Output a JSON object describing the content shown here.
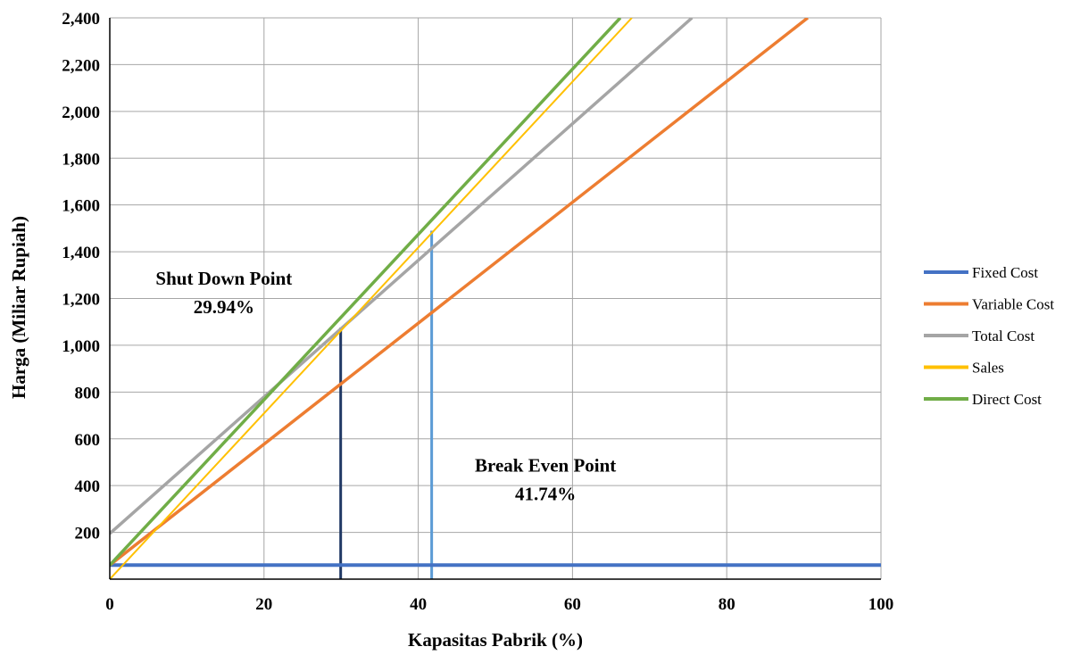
{
  "chart_data": {
    "type": "line",
    "title": "",
    "xlabel": "Kapasitas Pabrik (%)",
    "ylabel": "Harga (Miliar Rupiah)",
    "xlim": [
      0,
      100
    ],
    "ylim": [
      0,
      2400
    ],
    "xticks": [
      0,
      20,
      40,
      60,
      80,
      100
    ],
    "yticks": [
      200,
      400,
      600,
      800,
      1000,
      1200,
      1400,
      1600,
      1800,
      2000,
      2200,
      2400
    ],
    "xtick_labels": [
      "0",
      "20",
      "40",
      "60",
      "80",
      "100"
    ],
    "ytick_labels": [
      "200",
      "400",
      "600",
      "800",
      "1,000",
      "1,200",
      "1,400",
      "1,600",
      "1,800",
      "2,000",
      "2,200",
      "2,400"
    ],
    "grid": true,
    "legend_position": "right",
    "series": [
      {
        "name": "Fixed Cost",
        "color": "#4472C4",
        "width": 4,
        "x": [
          0,
          100
        ],
        "y": [
          60,
          60
        ]
      },
      {
        "name": "Variable Cost",
        "color": "#ED7D31",
        "width": 3.5,
        "x": [
          0,
          90.5
        ],
        "y": [
          60,
          2400
        ]
      },
      {
        "name": "Total Cost",
        "color": "#A5A5A5",
        "width": 3.5,
        "x": [
          0,
          75.5
        ],
        "y": [
          195,
          2400
        ]
      },
      {
        "name": "Sales",
        "color": "#FFC000",
        "width": 2,
        "x": [
          0,
          67.7
        ],
        "y": [
          0,
          2400
        ]
      },
      {
        "name": "Direct Cost",
        "color": "#70AD47",
        "width": 3.5,
        "x": [
          0,
          66.2
        ],
        "y": [
          60,
          2400
        ]
      }
    ],
    "markers": [
      {
        "color": "#203864",
        "x": 29.94,
        "y_top": 1075
      },
      {
        "color": "#5B9BD5",
        "x": 41.74,
        "y_top": 1490
      }
    ],
    "annotations": [
      {
        "lines": [
          "Shut Down Point",
          "29.94%"
        ],
        "x": 14.8,
        "y": 1260
      },
      {
        "lines": [
          "Break Even Point",
          "41.74%"
        ],
        "x": 56.5,
        "y": 460
      }
    ]
  }
}
